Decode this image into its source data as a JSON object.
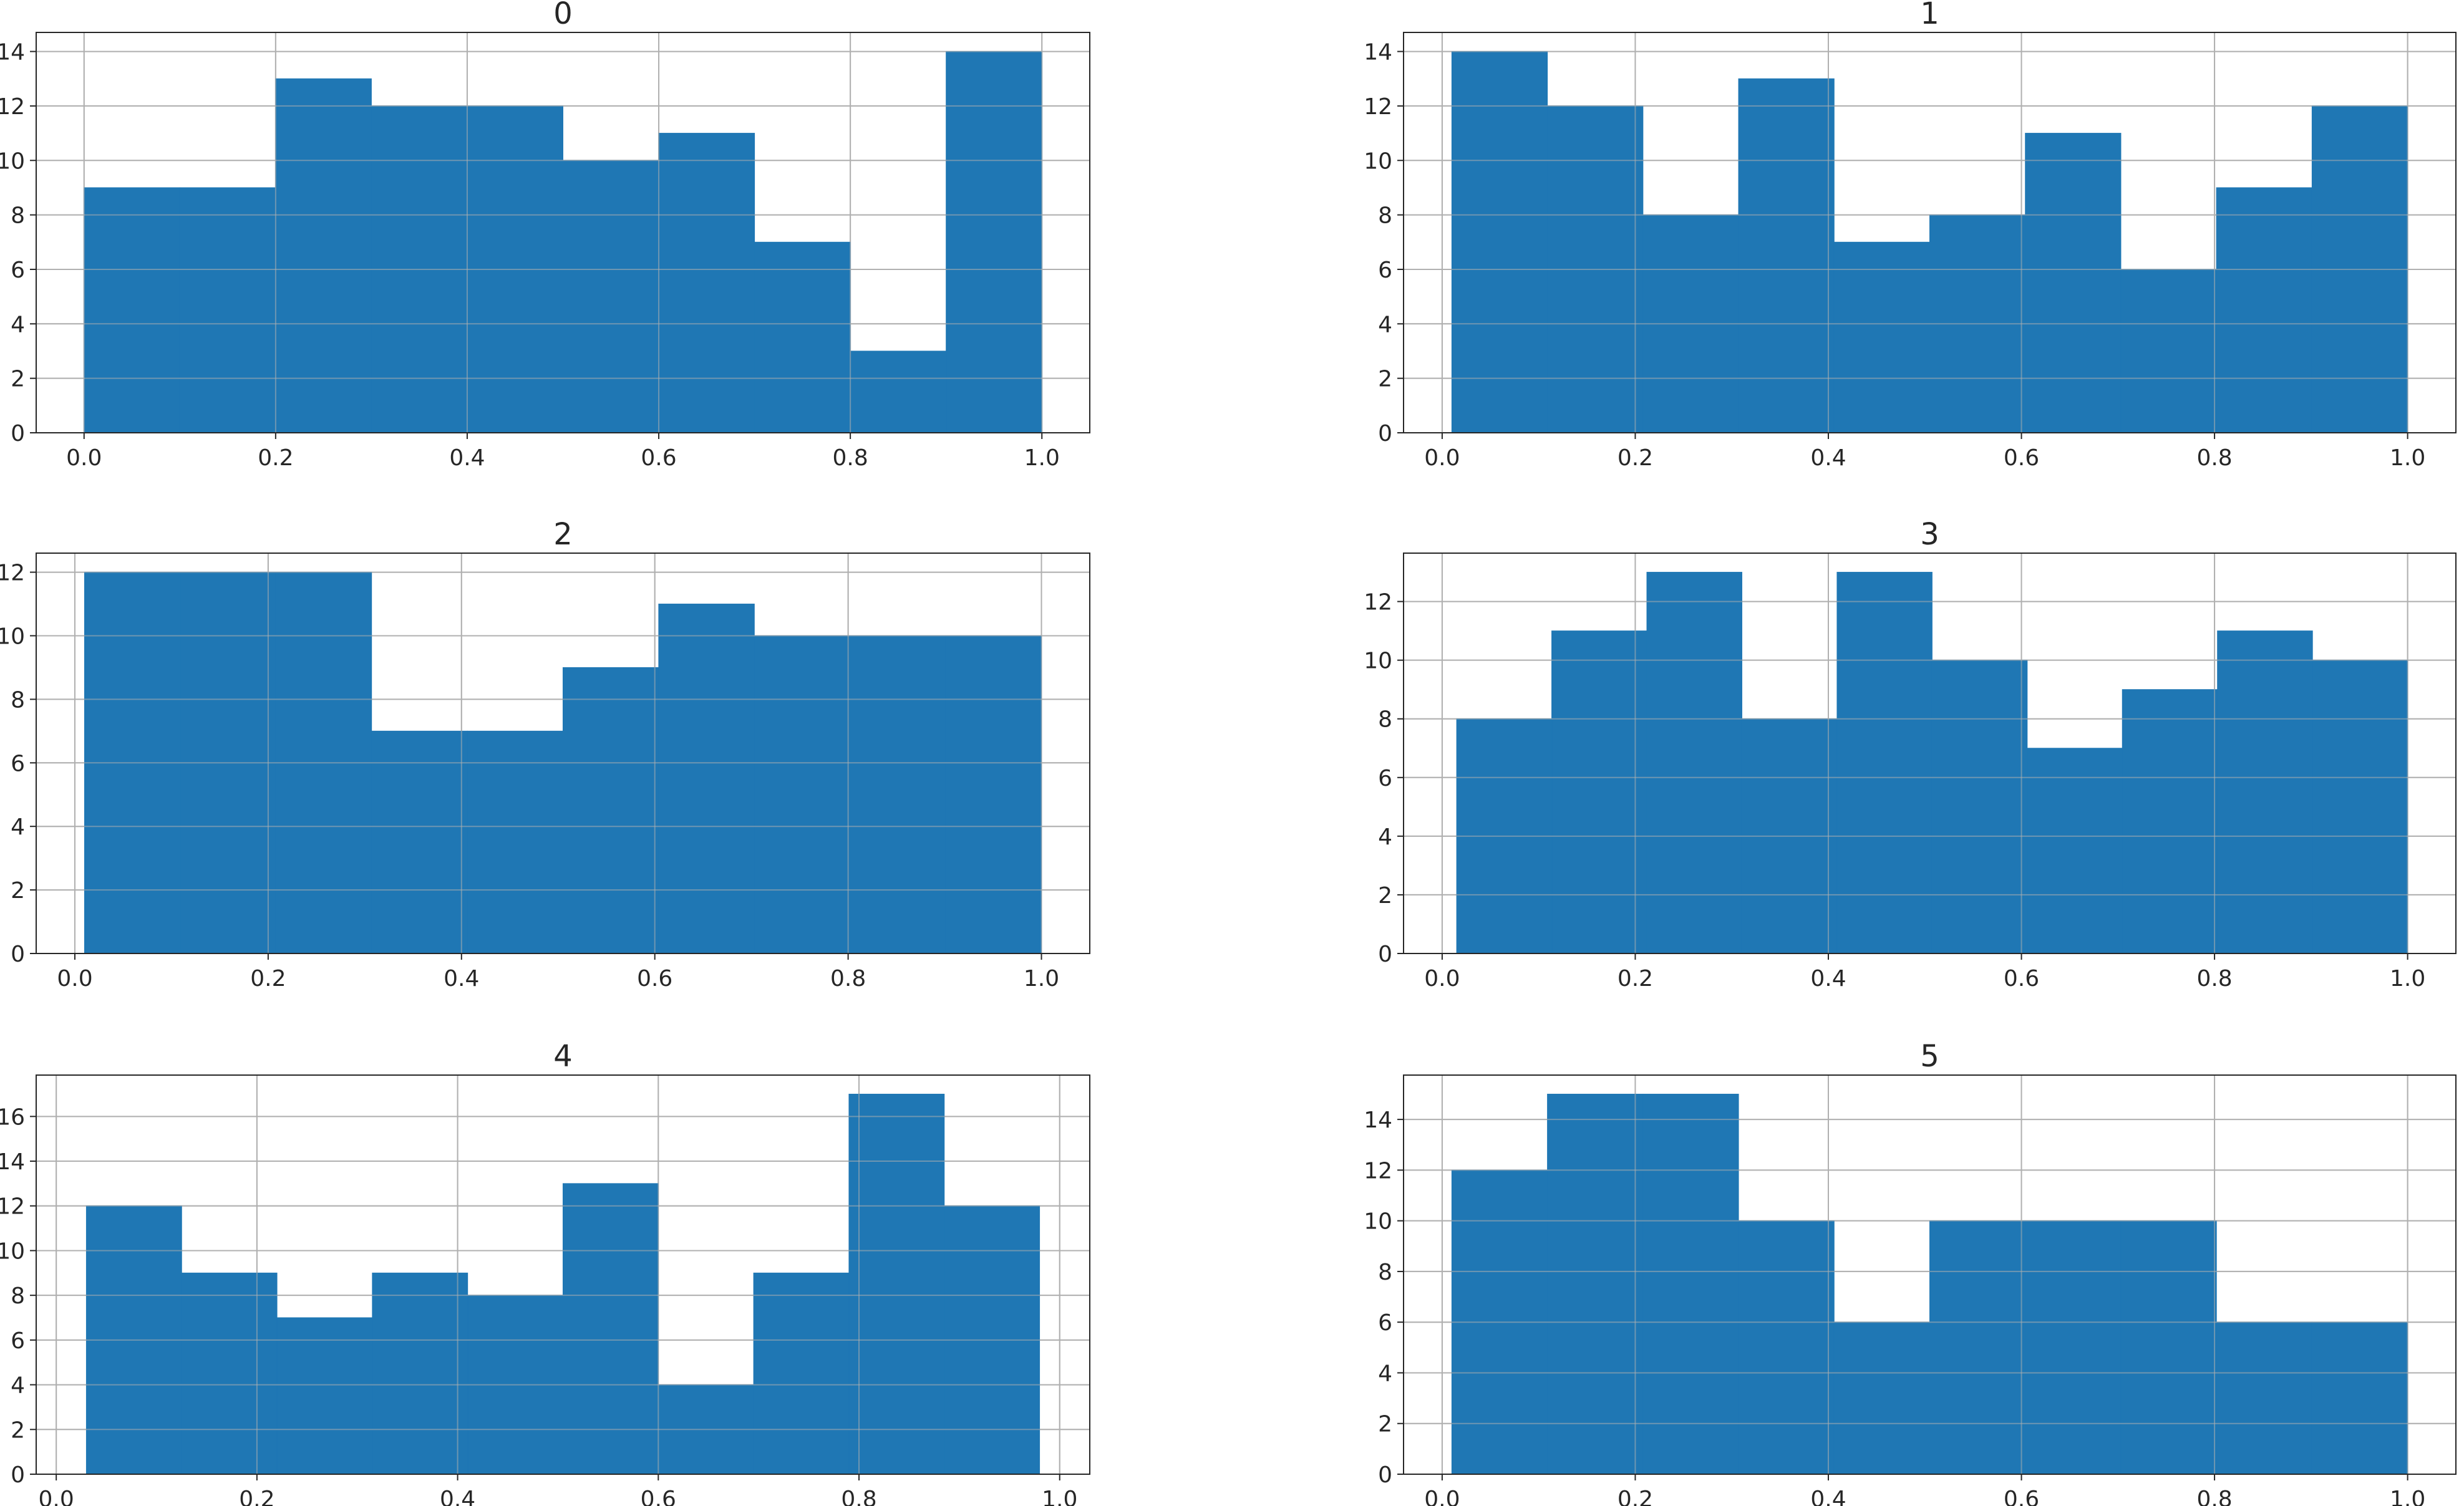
{
  "chart_data": [
    {
      "type": "bar",
      "title": "0",
      "bin_edges": [
        0.0,
        0.1,
        0.2,
        0.3,
        0.4,
        0.5,
        0.6,
        0.7,
        0.8,
        0.9,
        1.0
      ],
      "values": [
        9,
        9,
        13,
        12,
        12,
        10,
        11,
        7,
        3,
        14
      ],
      "xlim": [
        -0.05,
        1.05
      ],
      "ylim": [
        0,
        14.7
      ],
      "xticks": [
        0.0,
        0.2,
        0.4,
        0.6,
        0.8,
        1.0
      ],
      "xtick_labels": [
        "0.0",
        "0.2",
        "0.4",
        "0.6",
        "0.8",
        "1.0"
      ],
      "yticks": [
        0,
        2,
        4,
        6,
        8,
        10,
        12,
        14
      ],
      "ytick_labels": [
        "0",
        "2",
        "4",
        "6",
        "8",
        "10",
        "12",
        "14"
      ],
      "grid": true,
      "color": "#1f77b4"
    },
    {
      "type": "bar",
      "title": "1",
      "bin_edges": [
        0.01,
        0.109,
        0.208,
        0.307,
        0.406,
        0.505,
        0.604,
        0.703,
        0.802,
        0.901,
        1.0
      ],
      "values": [
        14,
        12,
        8,
        13,
        7,
        8,
        11,
        6,
        9,
        12
      ],
      "xlim": [
        -0.04,
        1.05
      ],
      "ylim": [
        0,
        14.7
      ],
      "xticks": [
        0.0,
        0.2,
        0.4,
        0.6,
        0.8,
        1.0
      ],
      "xtick_labels": [
        "0.0",
        "0.2",
        "0.4",
        "0.6",
        "0.8",
        "1.0"
      ],
      "yticks": [
        0,
        2,
        4,
        6,
        8,
        10,
        12,
        14
      ],
      "ytick_labels": [
        "0",
        "2",
        "4",
        "6",
        "8",
        "10",
        "12",
        "14"
      ],
      "grid": true,
      "color": "#1f77b4"
    },
    {
      "type": "bar",
      "title": "2",
      "bin_edges": [
        0.01,
        0.109,
        0.208,
        0.307,
        0.406,
        0.505,
        0.604,
        0.703,
        0.802,
        0.901,
        1.0
      ],
      "values": [
        12,
        12,
        12,
        7,
        7,
        9,
        11,
        10,
        10,
        10
      ],
      "xlim": [
        -0.04,
        1.05
      ],
      "ylim": [
        0,
        12.6
      ],
      "xticks": [
        0.0,
        0.2,
        0.4,
        0.6,
        0.8,
        1.0
      ],
      "xtick_labels": [
        "0.0",
        "0.2",
        "0.4",
        "0.6",
        "0.8",
        "1.0"
      ],
      "yticks": [
        0,
        2,
        4,
        6,
        8,
        10,
        12
      ],
      "ytick_labels": [
        "0",
        "2",
        "4",
        "6",
        "8",
        "10",
        "12"
      ],
      "grid": true,
      "color": "#1f77b4"
    },
    {
      "type": "bar",
      "title": "3",
      "bin_edges": [
        0.015,
        0.1135,
        0.212,
        0.3105,
        0.409,
        0.5075,
        0.606,
        0.7045,
        0.803,
        0.9015,
        1.0
      ],
      "values": [
        8,
        11,
        13,
        8,
        13,
        10,
        7,
        9,
        11,
        10
      ],
      "xlim": [
        -0.04,
        1.05
      ],
      "ylim": [
        0,
        13.65
      ],
      "xticks": [
        0.0,
        0.2,
        0.4,
        0.6,
        0.8,
        1.0
      ],
      "xtick_labels": [
        "0.0",
        "0.2",
        "0.4",
        "0.6",
        "0.8",
        "1.0"
      ],
      "yticks": [
        0,
        2,
        4,
        6,
        8,
        10,
        12
      ],
      "ytick_labels": [
        "0",
        "2",
        "4",
        "6",
        "8",
        "10",
        "12"
      ],
      "grid": true,
      "color": "#1f77b4"
    },
    {
      "type": "bar",
      "title": "4",
      "bin_edges": [
        0.03,
        0.125,
        0.22,
        0.315,
        0.41,
        0.505,
        0.6,
        0.695,
        0.79,
        0.885,
        0.98
      ],
      "values": [
        12,
        9,
        7,
        9,
        8,
        13,
        4,
        9,
        17,
        12
      ],
      "xlim": [
        -0.02,
        1.03
      ],
      "ylim": [
        0,
        17.85
      ],
      "xticks": [
        0.0,
        0.2,
        0.4,
        0.6,
        0.8,
        1.0
      ],
      "xtick_labels": [
        "0.0",
        "0.2",
        "0.4",
        "0.6",
        "0.8",
        "1.0"
      ],
      "yticks": [
        0,
        2,
        4,
        6,
        8,
        10,
        12,
        14,
        16
      ],
      "ytick_labels": [
        "0",
        "2",
        "4",
        "6",
        "8",
        "10",
        "12",
        "14",
        "16"
      ],
      "grid": true,
      "color": "#1f77b4"
    },
    {
      "type": "bar",
      "title": "5",
      "bin_edges": [
        0.01,
        0.109,
        0.208,
        0.307,
        0.406,
        0.505,
        0.604,
        0.703,
        0.802,
        0.901,
        1.0
      ],
      "values": [
        12,
        15,
        15,
        10,
        6,
        10,
        10,
        10,
        6,
        6
      ],
      "xlim": [
        -0.04,
        1.05
      ],
      "ylim": [
        0,
        15.75
      ],
      "xticks": [
        0.0,
        0.2,
        0.4,
        0.6,
        0.8,
        1.0
      ],
      "xtick_labels": [
        "0.0",
        "0.2",
        "0.4",
        "0.6",
        "0.8",
        "1.0"
      ],
      "yticks": [
        0,
        2,
        4,
        6,
        8,
        10,
        12,
        14
      ],
      "ytick_labels": [
        "0",
        "2",
        "4",
        "6",
        "8",
        "10",
        "12",
        "14"
      ],
      "grid": true,
      "color": "#1f77b4"
    }
  ]
}
